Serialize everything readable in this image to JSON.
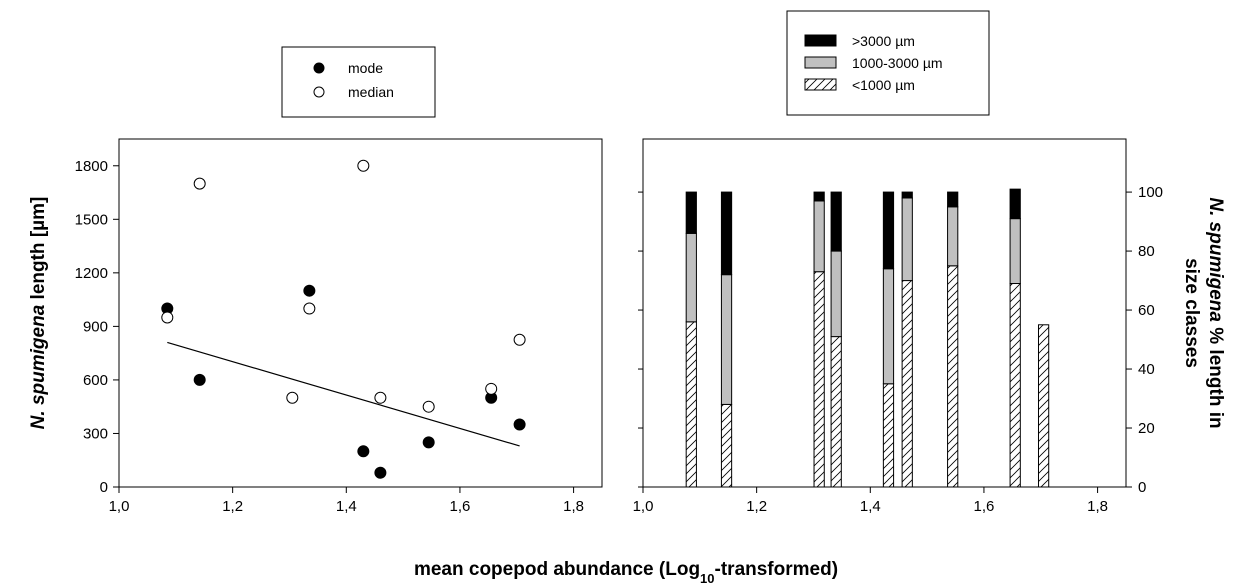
{
  "chart_data": [
    {
      "type": "scatter",
      "ylabel_italic": "N. spumigena",
      "ylabel_rest": " length [µm]",
      "xlim": [
        1.0,
        1.85
      ],
      "ylim": [
        0,
        1950
      ],
      "xticks": [
        "1,0",
        "1,2",
        "1,4",
        "1,6",
        "1,8"
      ],
      "yticks": [
        "0",
        "300",
        "600",
        "900",
        "1200",
        "1500",
        "1800"
      ],
      "legend_placement": "above",
      "series": [
        {
          "name": "mode",
          "marker": "filled-circle",
          "points": [
            [
              1.085,
              1000
            ],
            [
              1.142,
              600
            ],
            [
              1.335,
              1100
            ],
            [
              1.43,
              200
            ],
            [
              1.46,
              80
            ],
            [
              1.545,
              250
            ],
            [
              1.655,
              500
            ],
            [
              1.705,
              350
            ]
          ]
        },
        {
          "name": "median",
          "marker": "open-circle",
          "points": [
            [
              1.085,
              950
            ],
            [
              1.142,
              1700
            ],
            [
              1.305,
              500
            ],
            [
              1.335,
              1000
            ],
            [
              1.43,
              1800
            ],
            [
              1.46,
              500
            ],
            [
              1.545,
              450
            ],
            [
              1.655,
              550
            ],
            [
              1.705,
              825
            ]
          ]
        }
      ],
      "trend_line": [
        [
          1.085,
          810
        ],
        [
          1.705,
          230
        ]
      ]
    },
    {
      "type": "bar",
      "stacked": true,
      "ylabel_line1_italic": "N. spumigena",
      "ylabel_line1_rest": " % length in",
      "ylabel_line2": "size classes",
      "xlim": [
        1.0,
        1.85
      ],
      "ylim": [
        0,
        118
      ],
      "xticks": [
        "1,0",
        "1,2",
        "1,4",
        "1,6",
        "1,8"
      ],
      "yticks": [
        "0",
        "20",
        "40",
        "60",
        "80",
        "100"
      ],
      "legend_placement": "above",
      "bar_width": 0.018,
      "series_names": [
        ">3000 µm",
        "1000-3000 µm",
        "<1000 µm"
      ],
      "bars": [
        {
          "x": 1.085,
          "small": 56,
          "mid": 30,
          "large": 14
        },
        {
          "x": 1.147,
          "small": 28,
          "mid": 44,
          "large": 28
        },
        {
          "x": 1.31,
          "small": 73,
          "mid": 24,
          "large": 3
        },
        {
          "x": 1.34,
          "small": 51,
          "mid": 29,
          "large": 20
        },
        {
          "x": 1.432,
          "small": 35,
          "mid": 39,
          "large": 26
        },
        {
          "x": 1.465,
          "small": 70,
          "mid": 28,
          "large": 2
        },
        {
          "x": 1.545,
          "small": 75,
          "mid": 20,
          "large": 5
        },
        {
          "x": 1.655,
          "small": 69,
          "mid": 22,
          "large": 10
        },
        {
          "x": 1.705,
          "small": 55,
          "mid": 0,
          "large": 0
        }
      ]
    }
  ],
  "shared_xlabel_main": "mean copepod abundance (Log",
  "shared_xlabel_sub": "10",
  "shared_xlabel_end": "-transformed)",
  "colors": {
    "large": "#000000",
    "mid": "#c0c0c0",
    "small": "#ffffff"
  }
}
